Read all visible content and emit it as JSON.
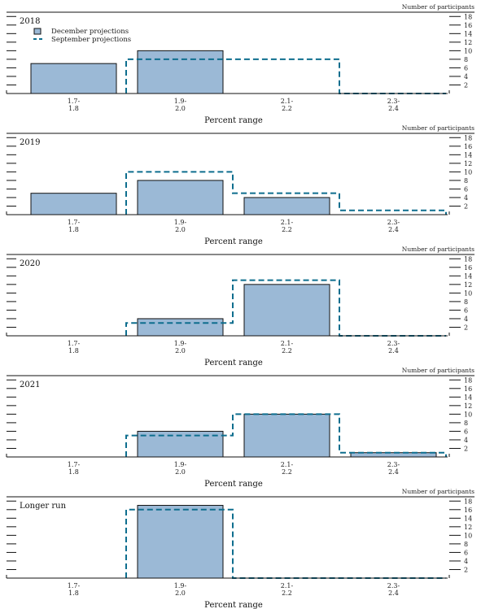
{
  "colors": {
    "december_fill": "#9bb9d6",
    "september_line": "#0e6e8e",
    "axis": "#111111"
  },
  "chart_data": [
    {
      "type": "bar",
      "title": "2018",
      "units_label": "Number of participants",
      "xlabel": "Percent range",
      "categories": [
        [
          "1.7-",
          "1.8"
        ],
        [
          "1.9-",
          "2.0"
        ],
        [
          "2.1-",
          "2.2"
        ],
        [
          "2.3-",
          "2.4"
        ]
      ],
      "ylim": [
        0,
        19
      ],
      "yticks": [
        2,
        4,
        6,
        8,
        10,
        12,
        14,
        16,
        18
      ],
      "legend": {
        "placement": "top-left",
        "entries": [
          "December projections",
          "September projections"
        ]
      },
      "series": [
        {
          "name": "December projections",
          "style": "bar",
          "values": [
            7,
            10,
            0,
            0
          ]
        },
        {
          "name": "September projections",
          "style": "dashed-step",
          "values": [
            0,
            8,
            8,
            0
          ]
        }
      ]
    },
    {
      "type": "bar",
      "title": "2019",
      "units_label": "Number of participants",
      "xlabel": "Percent range",
      "categories": [
        [
          "1.7-",
          "1.8"
        ],
        [
          "1.9-",
          "2.0"
        ],
        [
          "2.1-",
          "2.2"
        ],
        [
          "2.3-",
          "2.4"
        ]
      ],
      "ylim": [
        0,
        19
      ],
      "yticks": [
        2,
        4,
        6,
        8,
        10,
        12,
        14,
        16,
        18
      ],
      "series": [
        {
          "name": "December projections",
          "style": "bar",
          "values": [
            5,
            8,
            4,
            0
          ]
        },
        {
          "name": "September projections",
          "style": "dashed-step",
          "values": [
            0,
            10,
            5,
            1
          ]
        }
      ]
    },
    {
      "type": "bar",
      "title": "2020",
      "units_label": "Number of participants",
      "xlabel": "Percent range",
      "categories": [
        [
          "1.7-",
          "1.8"
        ],
        [
          "1.9-",
          "2.0"
        ],
        [
          "2.1-",
          "2.2"
        ],
        [
          "2.3-",
          "2.4"
        ]
      ],
      "ylim": [
        0,
        19
      ],
      "yticks": [
        2,
        4,
        6,
        8,
        10,
        12,
        14,
        16,
        18
      ],
      "series": [
        {
          "name": "December projections",
          "style": "bar",
          "values": [
            0,
            4,
            12,
            0
          ]
        },
        {
          "name": "September projections",
          "style": "dashed-step",
          "values": [
            0,
            3,
            13,
            0
          ]
        }
      ]
    },
    {
      "type": "bar",
      "title": "2021",
      "units_label": "Number of participants",
      "xlabel": "Percent range",
      "categories": [
        [
          "1.7-",
          "1.8"
        ],
        [
          "1.9-",
          "2.0"
        ],
        [
          "2.1-",
          "2.2"
        ],
        [
          "2.3-",
          "2.4"
        ]
      ],
      "ylim": [
        0,
        19
      ],
      "yticks": [
        2,
        4,
        6,
        8,
        10,
        12,
        14,
        16,
        18
      ],
      "series": [
        {
          "name": "December projections",
          "style": "bar",
          "values": [
            0,
            6,
            10,
            1
          ]
        },
        {
          "name": "September projections",
          "style": "dashed-step",
          "values": [
            0,
            5,
            10,
            1
          ]
        }
      ]
    },
    {
      "type": "bar",
      "title": "Longer run",
      "units_label": "Number of participants",
      "xlabel": "Percent range",
      "categories": [
        [
          "1.7-",
          "1.8"
        ],
        [
          "1.9-",
          "2.0"
        ],
        [
          "2.1-",
          "2.2"
        ],
        [
          "2.3-",
          "2.4"
        ]
      ],
      "ylim": [
        0,
        19
      ],
      "yticks": [
        2,
        4,
        6,
        8,
        10,
        12,
        14,
        16,
        18
      ],
      "series": [
        {
          "name": "December projections",
          "style": "bar",
          "values": [
            0,
            17,
            0,
            0
          ]
        },
        {
          "name": "September projections",
          "style": "dashed-step",
          "values": [
            0,
            16,
            0,
            0
          ]
        }
      ]
    }
  ]
}
